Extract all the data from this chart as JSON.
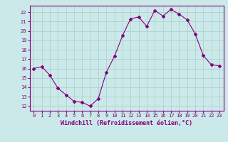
{
  "x": [
    0,
    1,
    2,
    3,
    4,
    5,
    6,
    7,
    8,
    9,
    10,
    11,
    12,
    13,
    14,
    15,
    16,
    17,
    18,
    19,
    20,
    21,
    22,
    23
  ],
  "y": [
    16.0,
    16.2,
    15.3,
    13.9,
    13.2,
    12.5,
    12.4,
    12.0,
    12.8,
    15.6,
    17.3,
    19.5,
    21.3,
    21.5,
    20.5,
    22.2,
    21.6,
    22.3,
    21.8,
    21.2,
    19.7,
    17.4,
    16.4,
    16.3
  ],
  "line_color": "#800080",
  "marker": "D",
  "marker_size": 2,
  "bg_color": "#cce9e9",
  "grid_color": "#aacccc",
  "xlabel": "Windchill (Refroidissement éolien,°C)",
  "ylim": [
    11.5,
    22.7
  ],
  "xlim": [
    -0.5,
    23.5
  ],
  "yticks": [
    12,
    13,
    14,
    15,
    16,
    17,
    18,
    19,
    20,
    21,
    22
  ],
  "xticks": [
    0,
    1,
    2,
    3,
    4,
    5,
    6,
    7,
    8,
    9,
    10,
    11,
    12,
    13,
    14,
    15,
    16,
    17,
    18,
    19,
    20,
    21,
    22,
    23
  ],
  "tick_color": "#800080",
  "label_color": "#800080",
  "font": "monospace",
  "tick_fontsize": 5,
  "xlabel_fontsize": 6
}
